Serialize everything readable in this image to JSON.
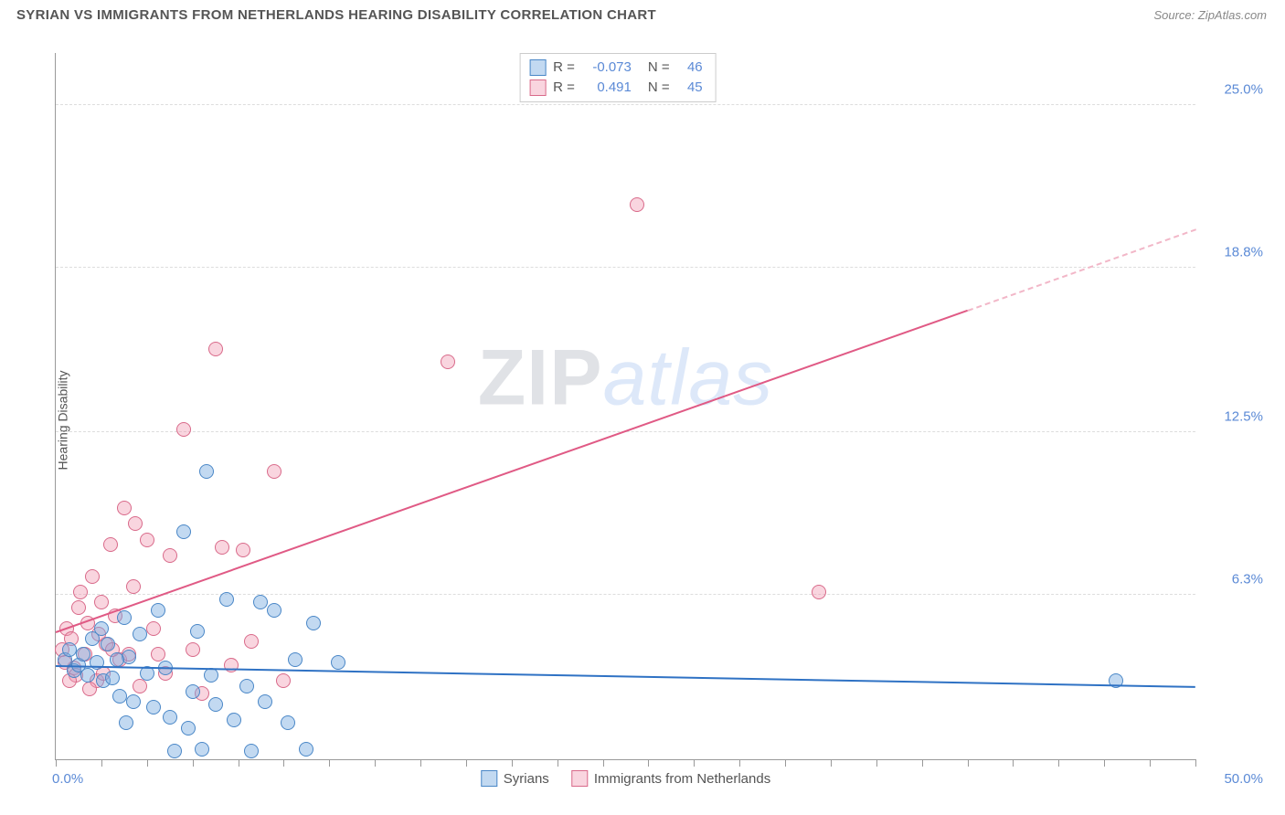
{
  "header": {
    "title": "SYRIAN VS IMMIGRANTS FROM NETHERLANDS HEARING DISABILITY CORRELATION CHART",
    "source": "Source: ZipAtlas.com"
  },
  "axes": {
    "y_label": "Hearing Disability",
    "x_min": 0,
    "x_max": 50,
    "y_min": 0,
    "y_max": 27,
    "x_left_label": "0.0%",
    "x_right_label": "50.0%",
    "y_ticks": [
      {
        "v": 6.3,
        "label": "6.3%"
      },
      {
        "v": 12.5,
        "label": "12.5%"
      },
      {
        "v": 18.8,
        "label": "18.8%"
      },
      {
        "v": 25.0,
        "label": "25.0%"
      }
    ],
    "x_tick_positions": [
      0,
      2,
      4,
      6,
      8,
      10,
      12,
      14,
      16,
      18,
      20,
      22,
      24,
      26,
      28,
      30,
      32,
      34,
      36,
      38,
      40,
      42,
      44,
      46,
      48,
      50
    ],
    "grid_color": "#dddddd",
    "axis_color": "#999999"
  },
  "series": {
    "blue": {
      "name": "Syrians",
      "fill": "rgba(120,170,225,0.45)",
      "stroke": "#4a87c7",
      "marker_radius": 8,
      "regression": {
        "x1": 0,
        "y1": 3.6,
        "x2": 50,
        "y2": 2.8,
        "color": "#2f72c4"
      },
      "R": "-0.073",
      "N": "46",
      "points": [
        [
          0.4,
          3.8
        ],
        [
          0.6,
          4.2
        ],
        [
          0.8,
          3.4
        ],
        [
          1.0,
          3.6
        ],
        [
          1.2,
          4.0
        ],
        [
          1.4,
          3.2
        ],
        [
          1.6,
          4.6
        ],
        [
          1.8,
          3.7
        ],
        [
          2.0,
          5.0
        ],
        [
          2.1,
          3.0
        ],
        [
          2.3,
          4.4
        ],
        [
          2.5,
          3.1
        ],
        [
          2.8,
          2.4
        ],
        [
          3.0,
          5.4
        ],
        [
          3.2,
          3.9
        ],
        [
          3.4,
          2.2
        ],
        [
          3.7,
          4.8
        ],
        [
          4.0,
          3.3
        ],
        [
          4.3,
          2.0
        ],
        [
          4.5,
          5.7
        ],
        [
          4.8,
          3.5
        ],
        [
          5.0,
          1.6
        ],
        [
          5.2,
          0.3
        ],
        [
          5.6,
          8.7
        ],
        [
          6.0,
          2.6
        ],
        [
          6.2,
          4.9
        ],
        [
          6.4,
          0.4
        ],
        [
          6.6,
          11.0
        ],
        [
          6.8,
          3.2
        ],
        [
          7.0,
          2.1
        ],
        [
          7.5,
          6.1
        ],
        [
          7.8,
          1.5
        ],
        [
          8.6,
          0.3
        ],
        [
          9.0,
          6.0
        ],
        [
          9.2,
          2.2
        ],
        [
          9.6,
          5.7
        ],
        [
          10.2,
          1.4
        ],
        [
          10.5,
          3.8
        ],
        [
          11.0,
          0.4
        ],
        [
          11.3,
          5.2
        ],
        [
          12.4,
          3.7
        ],
        [
          8.4,
          2.8
        ],
        [
          5.8,
          1.2
        ],
        [
          3.1,
          1.4
        ],
        [
          46.5,
          3.0
        ],
        [
          2.7,
          3.8
        ]
      ]
    },
    "pink": {
      "name": "Immigrants from Netherlands",
      "fill": "rgba(240,150,175,0.40)",
      "stroke": "#d96a8a",
      "marker_radius": 8,
      "regression_solid": {
        "x1": 0,
        "y1": 4.9,
        "x2": 40,
        "y2": 17.2,
        "color": "#e05a85"
      },
      "regression_dash": {
        "x1": 40,
        "y1": 17.2,
        "x2": 50,
        "y2": 20.3,
        "color": "#f2b7c8"
      },
      "R": "0.491",
      "N": "45",
      "points": [
        [
          0.3,
          4.2
        ],
        [
          0.5,
          5.0
        ],
        [
          0.7,
          4.6
        ],
        [
          0.8,
          3.5
        ],
        [
          1.0,
          5.8
        ],
        [
          1.1,
          6.4
        ],
        [
          1.4,
          5.2
        ],
        [
          1.6,
          7.0
        ],
        [
          1.8,
          3.0
        ],
        [
          2.0,
          6.0
        ],
        [
          2.2,
          4.4
        ],
        [
          2.4,
          8.2
        ],
        [
          2.6,
          5.5
        ],
        [
          2.8,
          3.8
        ],
        [
          3.0,
          9.6
        ],
        [
          3.2,
          4.0
        ],
        [
          3.5,
          9.0
        ],
        [
          3.7,
          2.8
        ],
        [
          4.0,
          8.4
        ],
        [
          4.3,
          5.0
        ],
        [
          4.8,
          3.3
        ],
        [
          5.0,
          7.8
        ],
        [
          5.6,
          12.6
        ],
        [
          6.0,
          4.2
        ],
        [
          6.4,
          2.5
        ],
        [
          7.0,
          15.7
        ],
        [
          7.3,
          8.1
        ],
        [
          7.7,
          3.6
        ],
        [
          8.2,
          8.0
        ],
        [
          8.6,
          4.5
        ],
        [
          9.6,
          11.0
        ],
        [
          10.0,
          3.0
        ],
        [
          1.3,
          4.0
        ],
        [
          1.9,
          4.8
        ],
        [
          2.1,
          3.3
        ],
        [
          2.5,
          4.2
        ],
        [
          0.4,
          3.7
        ],
        [
          0.9,
          3.2
        ],
        [
          17.2,
          15.2
        ],
        [
          25.5,
          21.2
        ],
        [
          33.5,
          6.4
        ],
        [
          4.5,
          4.0
        ],
        [
          1.5,
          2.7
        ],
        [
          0.6,
          3.0
        ],
        [
          3.4,
          6.6
        ]
      ]
    }
  },
  "stats_box": {
    "rows": [
      {
        "swatch_fill": "rgba(120,170,225,0.45)",
        "swatch_stroke": "#4a87c7",
        "r_label": "R =",
        "r_val": "-0.073",
        "n_label": "N =",
        "n_val": "46"
      },
      {
        "swatch_fill": "rgba(240,150,175,0.40)",
        "swatch_stroke": "#d96a8a",
        "r_label": "R =",
        "r_val": "0.491",
        "n_label": "N =",
        "n_val": "45"
      }
    ]
  },
  "watermark": {
    "part1": "ZIP",
    "part2": "atlas"
  },
  "bottom_legend": [
    {
      "fill": "rgba(120,170,225,0.45)",
      "stroke": "#4a87c7",
      "label": "Syrians"
    },
    {
      "fill": "rgba(240,150,175,0.40)",
      "stroke": "#d96a8a",
      "label": "Immigrants from Netherlands"
    }
  ],
  "style": {
    "background": "#ffffff",
    "title_fontsize": 15,
    "label_fontsize": 14,
    "tick_fontsize": 15,
    "tick_color": "#5b8ad6"
  }
}
